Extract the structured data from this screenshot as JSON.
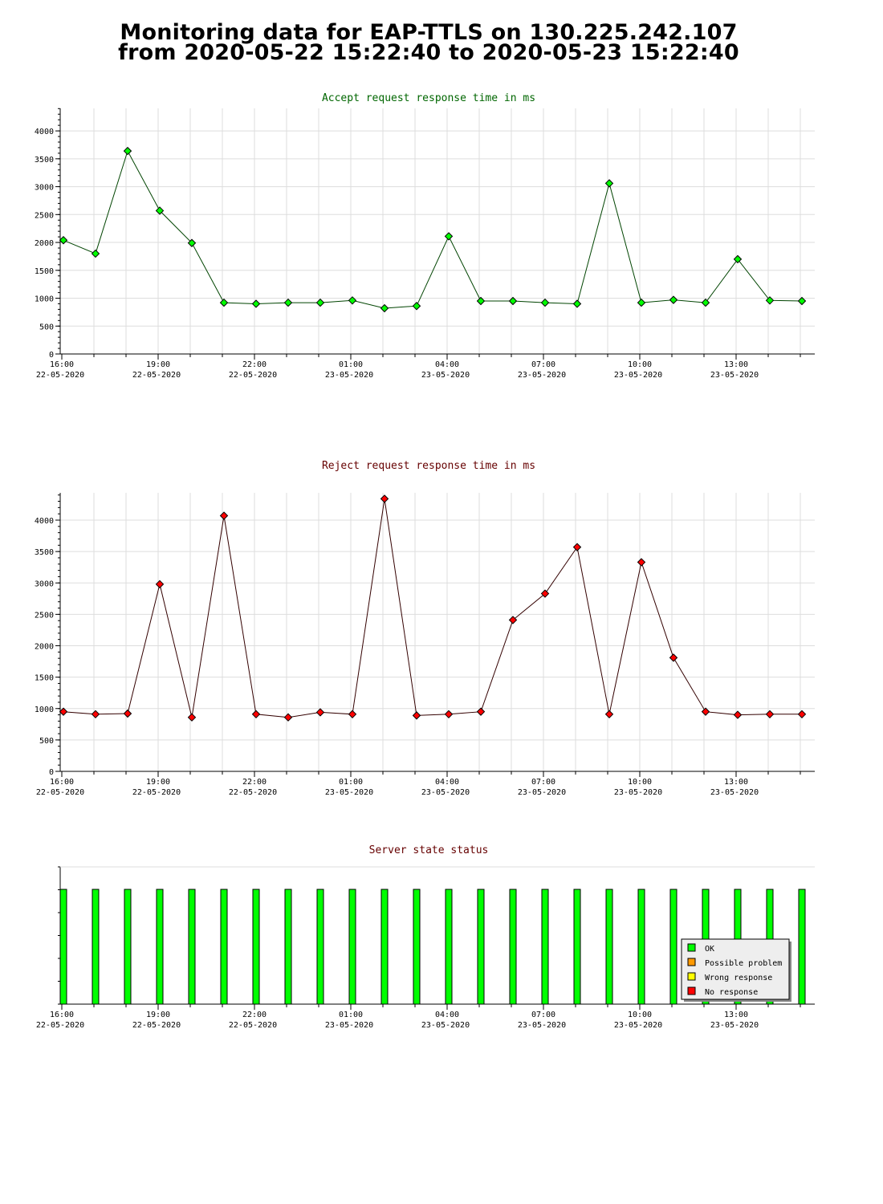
{
  "page": {
    "title_line1": "Monitoring data for EAP-TTLS on 130.225.242.107",
    "title_line2": "from 2020-05-22 15:22:40 to 2020-05-23 15:22:40"
  },
  "colors": {
    "accept_marker": "#00ff00",
    "accept_line": "#004400",
    "accept_title": "#006600",
    "reject_marker": "#ff0000",
    "reject_line": "#330000",
    "reject_title": "#660000",
    "status_title": "#660000",
    "grid": "#dddddd",
    "ok": "#00ff00",
    "possible_problem": "#ff9900",
    "wrong_response": "#ffff00",
    "no_response": "#ff0000"
  },
  "x_axis": {
    "ticks": [
      {
        "time": "16:00",
        "date": "22-05-2020"
      },
      {
        "time": "19:00",
        "date": "22-05-2020"
      },
      {
        "time": "22:00",
        "date": "22-05-2020"
      },
      {
        "time": "01:00",
        "date": "23-05-2020"
      },
      {
        "time": "04:00",
        "date": "23-05-2020"
      },
      {
        "time": "07:00",
        "date": "23-05-2020"
      },
      {
        "time": "10:00",
        "date": "23-05-2020"
      },
      {
        "time": "13:00",
        "date": "23-05-2020"
      }
    ]
  },
  "chart_data": [
    {
      "type": "line",
      "title": "Accept request response time in ms",
      "x": [
        "15:52",
        "16:52",
        "17:52",
        "18:52",
        "19:52",
        "20:52",
        "21:52",
        "22:52",
        "23:52",
        "00:52",
        "01:52",
        "02:52",
        "03:52",
        "04:52",
        "05:52",
        "06:52",
        "07:52",
        "08:52",
        "09:52",
        "10:52",
        "11:52",
        "12:52",
        "13:52",
        "14:52"
      ],
      "values": [
        2040,
        1800,
        3640,
        2570,
        1990,
        920,
        900,
        920,
        920,
        960,
        820,
        860,
        2110,
        950,
        950,
        920,
        900,
        3060,
        920,
        970,
        920,
        1700,
        960,
        950
      ],
      "ylim": [
        0,
        4400
      ],
      "y_ticks": [
        0,
        500,
        1000,
        1500,
        2000,
        2500,
        3000,
        3500,
        4000
      ],
      "grid": true
    },
    {
      "type": "line",
      "title": "Reject request response time in ms",
      "x": [
        "15:52",
        "16:52",
        "17:52",
        "18:52",
        "19:52",
        "20:52",
        "21:52",
        "22:52",
        "23:52",
        "00:52",
        "01:52",
        "02:52",
        "03:52",
        "04:52",
        "05:52",
        "06:52",
        "07:52",
        "08:52",
        "09:52",
        "10:52",
        "11:52",
        "12:52",
        "13:52",
        "14:52"
      ],
      "values": [
        950,
        910,
        920,
        2980,
        860,
        4070,
        910,
        860,
        940,
        910,
        4340,
        890,
        910,
        950,
        2410,
        2830,
        3570,
        910,
        3330,
        1810,
        950,
        900,
        910,
        910
      ],
      "ylim": [
        0,
        4400
      ],
      "y_ticks": [
        0,
        500,
        1000,
        1500,
        2000,
        2500,
        3000,
        3500,
        4000
      ],
      "grid": true
    },
    {
      "type": "bar",
      "title": "Server state status",
      "x": [
        "15:52",
        "16:52",
        "17:52",
        "18:52",
        "19:52",
        "20:52",
        "21:52",
        "22:52",
        "23:52",
        "00:52",
        "01:52",
        "02:52",
        "03:52",
        "04:52",
        "05:52",
        "06:52",
        "07:52",
        "08:52",
        "09:52",
        "10:52",
        "11:52",
        "12:52",
        "13:52",
        "14:52"
      ],
      "states": [
        "OK",
        "OK",
        "OK",
        "OK",
        "OK",
        "OK",
        "OK",
        "OK",
        "OK",
        "OK",
        "OK",
        "OK",
        "OK",
        "OK",
        "OK",
        "OK",
        "OK",
        "OK",
        "OK",
        "OK",
        "OK",
        "OK",
        "OK",
        "OK"
      ],
      "legend_position": "bottom-right",
      "legend": [
        {
          "label": "OK",
          "color": "#00ff00"
        },
        {
          "label": "Possible problem",
          "color": "#ff9900"
        },
        {
          "label": "Wrong response",
          "color": "#ffff00"
        },
        {
          "label": "No response",
          "color": "#ff0000"
        }
      ]
    }
  ]
}
